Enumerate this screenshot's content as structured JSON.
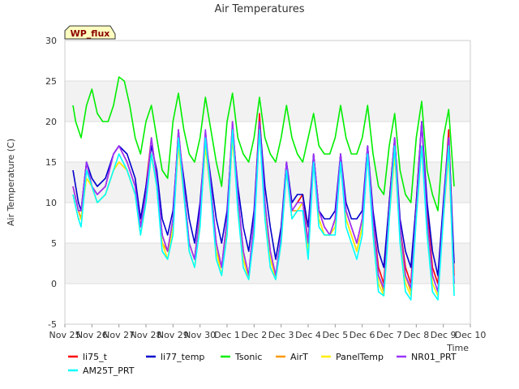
{
  "chart_data": {
    "type": "line",
    "title": "Air Temperatures",
    "ylabel": "Air Temperature (C)",
    "xlabel": "Time",
    "badge": "WP_flux",
    "ylim": [
      -5,
      30
    ],
    "yticks": [
      -5,
      0,
      5,
      10,
      15,
      20,
      25,
      30
    ],
    "xlim": [
      0,
      15
    ],
    "xticks": [
      {
        "x": 0,
        "label": "Nov 25"
      },
      {
        "x": 1,
        "label": "Nov 26"
      },
      {
        "x": 2,
        "label": "Nov 27"
      },
      {
        "x": 3,
        "label": "Nov 28"
      },
      {
        "x": 4,
        "label": "Nov 29"
      },
      {
        "x": 5,
        "label": "Nov 30"
      },
      {
        "x": 6,
        "label": "Dec 1"
      },
      {
        "x": 7,
        "label": "Dec 2"
      },
      {
        "x": 8,
        "label": "Dec 3"
      },
      {
        "x": 9,
        "label": "Dec 4"
      },
      {
        "x": 10,
        "label": "Dec 5"
      },
      {
        "x": 11,
        "label": "Dec 6"
      },
      {
        "x": 12,
        "label": "Dec 7"
      },
      {
        "x": 13,
        "label": "Dec 8"
      },
      {
        "x": 14,
        "label": "Dec 9"
      },
      {
        "x": 15,
        "label": "Dec 10"
      }
    ],
    "grid": true,
    "band_color": "#f2f2f2",
    "legend_position": "bottom",
    "series": [
      {
        "name": "li75_t",
        "color": "#ff0000",
        "x": [
          0.3,
          0.5,
          0.6,
          0.8,
          1.0,
          1.2,
          1.5,
          1.8,
          2.0,
          2.3,
          2.6,
          2.8,
          3.0,
          3.2,
          3.4,
          3.6,
          3.8,
          4.0,
          4.2,
          4.4,
          4.6,
          4.8,
          5.0,
          5.2,
          5.4,
          5.6,
          5.8,
          6.0,
          6.2,
          6.4,
          6.6,
          6.8,
          7.0,
          7.2,
          7.4,
          7.6,
          7.8,
          8.0,
          8.2,
          8.4,
          8.6,
          8.8,
          9.0,
          9.2,
          9.4,
          9.6,
          9.8,
          10.0,
          10.2,
          10.4,
          10.6,
          10.8,
          11.0,
          11.2,
          11.4,
          11.6,
          11.8,
          12.0,
          12.2,
          12.4,
          12.6,
          12.8,
          13.0,
          13.2,
          13.4,
          13.6,
          13.8,
          14.0,
          14.2,
          14.4
        ],
        "y": [
          12,
          9,
          9,
          15,
          12,
          11,
          12,
          16,
          17,
          15,
          12,
          7,
          12,
          18,
          13,
          6,
          4,
          8,
          19,
          12,
          5,
          3,
          9,
          18,
          12,
          5,
          2,
          8,
          20,
          11,
          4,
          1,
          8,
          21,
          10,
          4,
          1,
          6,
          15,
          9,
          10,
          11,
          5,
          16,
          9,
          7,
          6,
          8,
          16,
          9,
          7,
          5,
          8,
          17,
          8,
          2,
          0,
          10,
          18,
          7,
          2,
          0,
          10,
          20,
          9,
          2,
          0,
          9,
          19,
          1
        ]
      },
      {
        "name": "li77_temp",
        "color": "#0000cc",
        "x": [
          0.3,
          0.5,
          0.6,
          0.8,
          1.0,
          1.2,
          1.5,
          1.8,
          2.0,
          2.3,
          2.6,
          2.8,
          3.0,
          3.2,
          3.4,
          3.6,
          3.8,
          4.0,
          4.2,
          4.4,
          4.6,
          4.8,
          5.0,
          5.2,
          5.4,
          5.6,
          5.8,
          6.0,
          6.2,
          6.4,
          6.6,
          6.8,
          7.0,
          7.2,
          7.4,
          7.6,
          7.8,
          8.0,
          8.2,
          8.4,
          8.6,
          8.8,
          9.0,
          9.2,
          9.4,
          9.6,
          9.8,
          10.0,
          10.2,
          10.4,
          10.6,
          10.8,
          11.0,
          11.2,
          11.4,
          11.6,
          11.8,
          12.0,
          12.2,
          12.4,
          12.6,
          12.8,
          13.0,
          13.2,
          13.4,
          13.6,
          13.8,
          14.0,
          14.2,
          14.4
        ],
        "y": [
          14,
          10,
          9,
          15,
          13,
          12,
          13,
          16,
          17,
          16,
          13,
          8,
          12,
          17,
          14,
          8,
          6,
          9,
          18,
          13,
          8,
          5,
          10,
          18,
          13,
          8,
          5,
          9,
          19,
          12,
          7,
          4,
          9,
          20,
          12,
          7,
          3,
          7,
          15,
          10,
          11,
          11,
          7,
          16,
          9,
          8,
          8,
          9,
          16,
          10,
          8,
          8,
          9,
          17,
          9,
          4,
          2,
          10,
          18,
          8,
          4,
          2,
          10,
          20,
          10,
          4,
          1,
          10,
          18,
          2.5
        ]
      },
      {
        "name": "Tsonic",
        "color": "#00ee00",
        "x": [
          0.3,
          0.4,
          0.6,
          0.8,
          1.0,
          1.2,
          1.4,
          1.6,
          1.8,
          2.0,
          2.2,
          2.4,
          2.6,
          2.8,
          3.0,
          3.2,
          3.4,
          3.6,
          3.8,
          4.0,
          4.2,
          4.4,
          4.6,
          4.8,
          5.0,
          5.2,
          5.4,
          5.6,
          5.8,
          6.0,
          6.2,
          6.4,
          6.6,
          6.8,
          7.0,
          7.2,
          7.4,
          7.6,
          7.8,
          8.0,
          8.2,
          8.4,
          8.6,
          8.8,
          9.0,
          9.2,
          9.4,
          9.6,
          9.8,
          10.0,
          10.2,
          10.4,
          10.6,
          10.8,
          11.0,
          11.2,
          11.4,
          11.6,
          11.8,
          12.0,
          12.2,
          12.4,
          12.6,
          12.8,
          13.0,
          13.2,
          13.4,
          13.6,
          13.8,
          14.0,
          14.2,
          14.4
        ],
        "y": [
          22,
          20,
          18,
          22,
          24,
          21,
          20,
          20,
          22,
          25.5,
          25,
          22,
          18,
          16,
          20,
          22,
          18,
          14,
          13,
          20,
          23.5,
          19,
          16,
          15,
          18,
          23,
          19,
          15,
          12,
          20,
          23.5,
          18,
          16,
          15,
          18,
          23,
          18,
          16,
          15,
          18,
          22,
          18,
          16,
          15,
          18,
          21,
          17,
          16,
          16,
          18,
          22,
          18,
          16,
          16,
          18,
          22,
          16,
          12,
          11,
          17,
          21,
          14,
          11,
          10,
          18,
          22.5,
          14,
          11,
          9,
          18,
          21.5,
          12
        ]
      },
      {
        "name": "AirT",
        "color": "#ff9900",
        "x": [
          0.3,
          0.5,
          0.6,
          0.8,
          1.0,
          1.2,
          1.5,
          1.8,
          2.0,
          2.3,
          2.6,
          2.8,
          3.0,
          3.2,
          3.4,
          3.6,
          3.8,
          4.0,
          4.2,
          4.4,
          4.6,
          4.8,
          5.0,
          5.2,
          5.4,
          5.6,
          5.8,
          6.0,
          6.2,
          6.4,
          6.6,
          6.8,
          7.0,
          7.2,
          7.4,
          7.6,
          7.8,
          8.0,
          8.2,
          8.4,
          8.6,
          8.8,
          9.0,
          9.2,
          9.4,
          9.6,
          9.8,
          10.0,
          10.2,
          10.4,
          10.6,
          10.8,
          11.0,
          11.2,
          11.4,
          11.6,
          11.8,
          12.0,
          12.2,
          12.4,
          12.6,
          12.8,
          13.0,
          13.2,
          13.4,
          13.6,
          13.8,
          14.0,
          14.2,
          14.4
        ],
        "y": [
          12,
          9,
          8,
          14,
          12,
          10,
          11,
          14,
          15,
          14,
          11,
          7,
          11,
          16,
          12,
          5,
          4,
          7,
          17,
          11,
          5,
          3,
          8,
          17,
          11,
          4,
          2,
          7,
          18,
          10,
          3,
          1,
          7,
          19,
          9,
          3,
          1,
          6,
          14,
          9,
          9,
          10,
          5,
          15,
          8,
          6,
          6,
          7,
          15,
          8,
          6,
          4,
          7,
          16,
          7,
          1,
          -1,
          9,
          16,
          6,
          1,
          -1,
          9,
          17,
          8,
          1,
          -1,
          8,
          17,
          0
        ]
      },
      {
        "name": "PanelTemp",
        "color": "#ffee00",
        "x": [
          0.3,
          0.5,
          0.6,
          0.8,
          1.0,
          1.2,
          1.5,
          1.8,
          2.0,
          2.3,
          2.6,
          2.8,
          3.0,
          3.2,
          3.4,
          3.6,
          3.8,
          4.0,
          4.2,
          4.4,
          4.6,
          4.8,
          5.0,
          5.2,
          5.4,
          5.6,
          5.8,
          6.0,
          6.2,
          6.4,
          6.6,
          6.8,
          7.0,
          7.2,
          7.4,
          7.6,
          7.8,
          8.0,
          8.2,
          8.4,
          8.6,
          8.8,
          9.0,
          9.2,
          9.4,
          9.6,
          9.8,
          10.0,
          10.2,
          10.4,
          10.6,
          10.8,
          11.0,
          11.2,
          11.4,
          11.6,
          11.8,
          12.0,
          12.2,
          12.4,
          12.6,
          12.8,
          13.0,
          13.2,
          13.4,
          13.6,
          13.8,
          14.0,
          14.2,
          14.4
        ],
        "y": [
          11,
          8,
          8,
          13,
          12,
          10,
          11,
          14,
          15,
          14,
          11,
          6,
          10,
          16,
          12,
          5,
          3,
          7,
          17,
          11,
          4,
          2,
          8,
          17,
          11,
          4,
          1,
          7,
          18,
          10,
          3,
          0.5,
          7,
          19,
          9,
          3,
          0.5,
          5,
          14,
          8,
          9,
          10,
          4,
          15,
          8,
          6,
          6,
          7,
          15,
          8,
          6,
          4,
          7,
          16,
          7,
          0,
          -1.5,
          8,
          16,
          6,
          0,
          -1.5,
          8,
          17,
          7,
          0,
          -1.5,
          8,
          16,
          -1
        ]
      },
      {
        "name": "NR01_PRT",
        "color": "#9933ff",
        "x": [
          0.3,
          0.5,
          0.6,
          0.8,
          1.0,
          1.2,
          1.5,
          1.8,
          2.0,
          2.3,
          2.6,
          2.8,
          3.0,
          3.2,
          3.4,
          3.6,
          3.8,
          4.0,
          4.2,
          4.4,
          4.6,
          4.8,
          5.0,
          5.2,
          5.4,
          5.6,
          5.8,
          6.0,
          6.2,
          6.4,
          6.6,
          6.8,
          7.0,
          7.2,
          7.4,
          7.6,
          7.8,
          8.0,
          8.2,
          8.4,
          8.6,
          8.8,
          9.0,
          9.2,
          9.4,
          9.6,
          9.8,
          10.0,
          10.2,
          10.4,
          10.6,
          10.8,
          11.0,
          11.2,
          11.4,
          11.6,
          11.8,
          12.0,
          12.2,
          12.4,
          12.6,
          12.8,
          13.0,
          13.2,
          13.4,
          13.6,
          13.8,
          14.0,
          14.2,
          14.4
        ],
        "y": [
          12,
          9,
          9,
          15,
          12,
          11,
          12,
          16,
          17,
          15,
          12,
          7,
          11,
          18,
          13,
          6,
          4,
          8,
          19,
          12,
          5,
          3,
          9,
          19,
          12,
          5,
          2,
          8,
          20,
          11,
          4,
          1,
          8,
          20,
          10,
          4,
          1,
          6,
          15,
          9,
          10,
          10,
          5,
          16,
          9,
          7,
          6,
          8,
          16,
          9,
          7,
          5,
          8,
          17,
          8,
          1,
          -0.5,
          9,
          18,
          7,
          1,
          -0.5,
          9,
          20,
          8,
          1,
          -1,
          9,
          18,
          0
        ]
      },
      {
        "name": "AM25T_PRT",
        "color": "#00ffff",
        "x": [
          0.3,
          0.5,
          0.6,
          0.8,
          1.0,
          1.2,
          1.5,
          1.8,
          2.0,
          2.3,
          2.6,
          2.8,
          3.0,
          3.2,
          3.4,
          3.6,
          3.8,
          4.0,
          4.2,
          4.4,
          4.6,
          4.8,
          5.0,
          5.2,
          5.4,
          5.6,
          5.8,
          6.0,
          6.2,
          6.4,
          6.6,
          6.8,
          7.0,
          7.2,
          7.4,
          7.6,
          7.8,
          8.0,
          8.2,
          8.4,
          8.6,
          8.8,
          9.0,
          9.2,
          9.4,
          9.6,
          9.8,
          10.0,
          10.2,
          10.4,
          10.6,
          10.8,
          11.0,
          11.2,
          11.4,
          11.6,
          11.8,
          12.0,
          12.2,
          12.4,
          12.6,
          12.8,
          13.0,
          13.2,
          13.4,
          13.6,
          13.8,
          14.0,
          14.2,
          14.4
        ],
        "y": [
          11,
          8,
          7,
          14,
          12,
          10,
          11,
          14,
          16,
          14,
          11,
          6,
          10,
          16,
          12,
          4,
          3,
          6,
          18,
          11,
          4,
          2,
          7,
          18,
          11,
          3,
          1,
          6,
          19,
          9,
          2,
          0.5,
          6,
          19,
          8,
          2,
          0.5,
          5,
          14,
          8,
          9,
          9,
          3,
          15,
          7,
          6,
          6,
          6,
          15,
          7,
          5,
          3,
          6,
          16,
          6,
          -1,
          -1.5,
          8,
          17,
          5,
          -1,
          -2,
          8,
          17,
          6,
          -1,
          -2,
          8,
          17,
          -1.5
        ]
      }
    ]
  }
}
